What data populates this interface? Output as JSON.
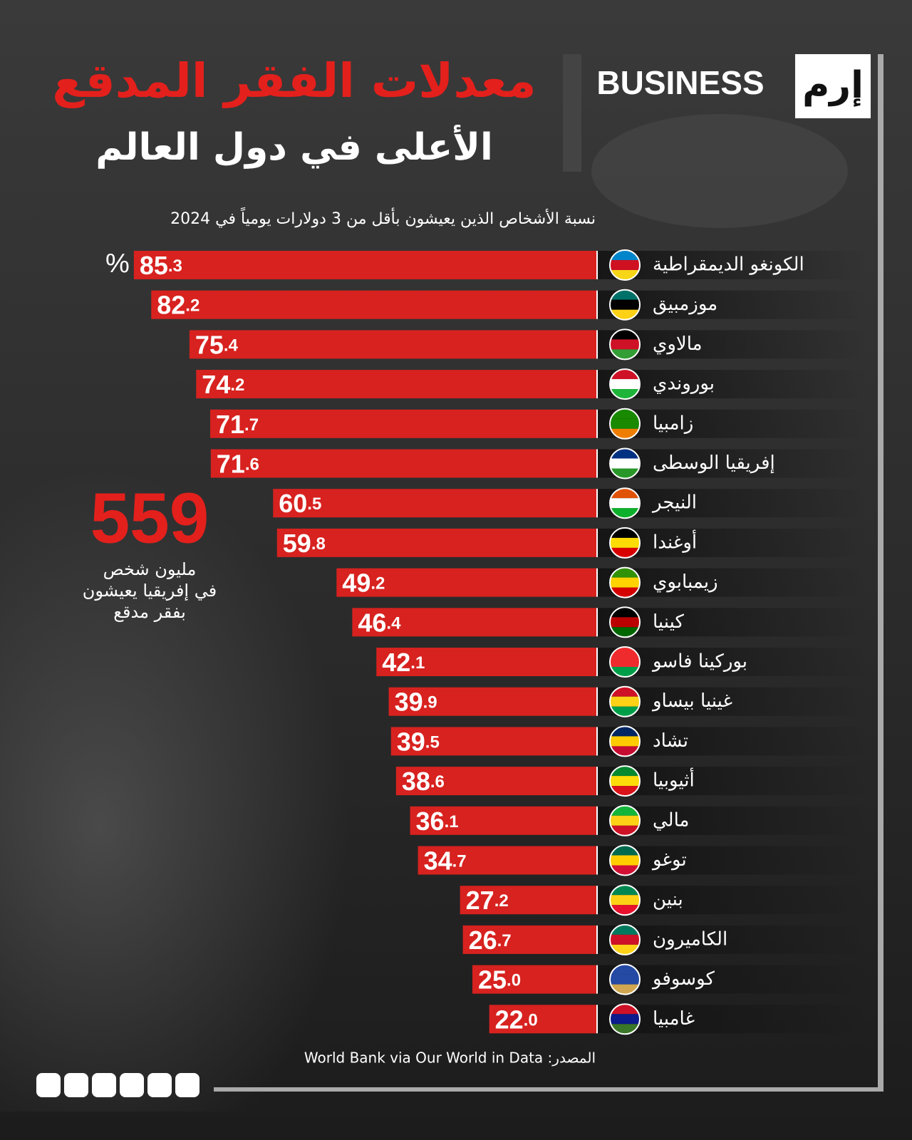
{
  "brand": {
    "name": "BUSINESS",
    "mark": "إرم"
  },
  "chart_data": {
    "type": "bar",
    "orientation": "horizontal",
    "title": "معدلات الفقر المدقع",
    "subtitle": "الأعلى في دول العالم",
    "note": "نسبة الأشخاص الذين يعيشون بأقل من 3 دولارات يومياً في 2024",
    "unit": "%",
    "categories": [
      "الكونغو الديمقراطية",
      "موزمبيق",
      "مالاوي",
      "بوروندي",
      "زامبيا",
      "إفريقيا الوسطى",
      "النيجر",
      "أوغندا",
      "زيمبابوي",
      "كينيا",
      "بوركينا فاسو",
      "غينيا بيساو",
      "تشاد",
      "أثيوبيا",
      "مالي",
      "توغو",
      "بنين",
      "الكاميرون",
      "كوسوفو",
      "غامبيا"
    ],
    "values": [
      85.3,
      82.2,
      75.4,
      74.2,
      71.7,
      71.6,
      60.5,
      59.8,
      49.2,
      46.4,
      42.1,
      39.9,
      39.5,
      38.6,
      36.1,
      34.7,
      27.2,
      26.7,
      25.0,
      22.0
    ],
    "value_labels": [
      "85.3",
      "82.2",
      "75.4",
      "74.2",
      "71.7",
      "71.6",
      "60.5",
      "59.8",
      "49.2",
      "46.4",
      "42.1",
      "39.9",
      "39.5",
      "38.6",
      "36.1",
      "34.7",
      "27.2",
      "26.7",
      "25.0",
      "22.0"
    ],
    "color": "#d7221f",
    "callout": {
      "value": "559",
      "lines": [
        "مليون شخص",
        "في إفريقيا يعيشون",
        "بفقر مدقع"
      ]
    },
    "source": "المصدر: World Bank via Our World in Data"
  }
}
